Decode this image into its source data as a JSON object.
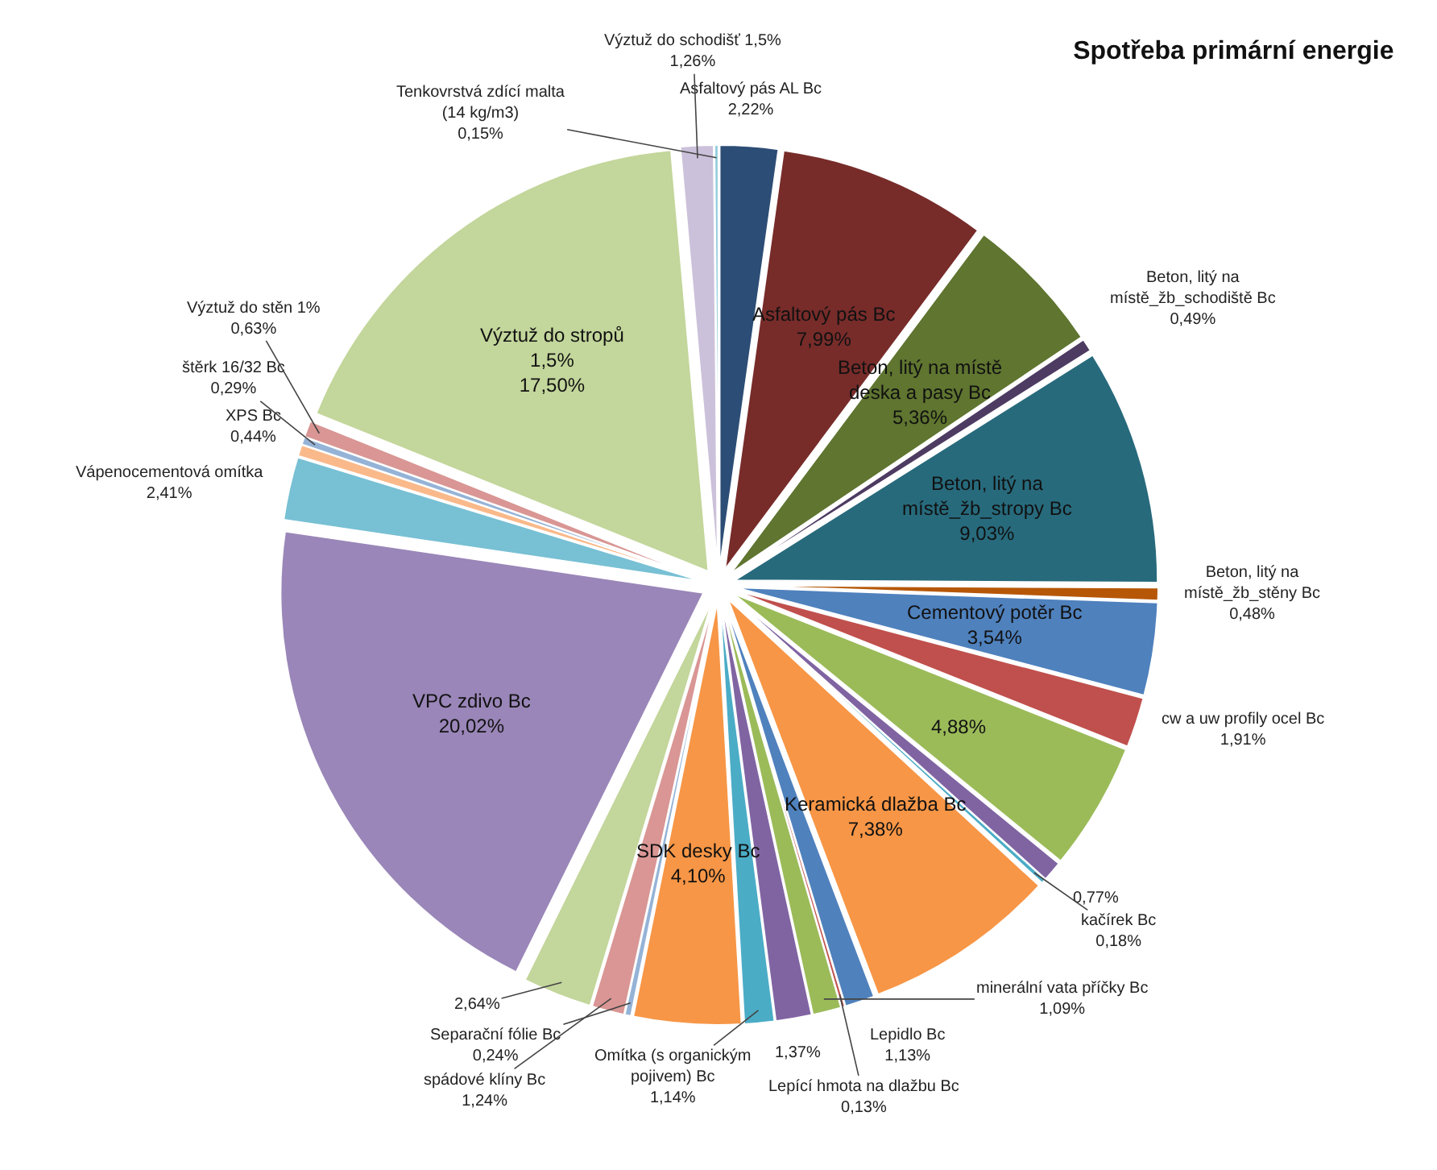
{
  "chart_data": {
    "type": "pie",
    "title": "Spotřeba primární energie",
    "categories": [
      "Asfaltový pás AL Bc",
      "Asfaltový pás Bc",
      "Beton, litý na místě deska a pasy Bc",
      "Beton, litý na místě_žb_schodiště Bc",
      "Beton, litý na místě_žb_stropy Bc",
      "Beton, litý na místě_žb_stěny Bc",
      "Cementový potěr Bc",
      "cw a uw profily ocel Bc",
      null,
      null,
      "kačírek Bc",
      "Keramická dlažba Bc",
      "Lepidlo Bc",
      "Lepící hmota na dlažbu Bc",
      "minerální vata příčky Bc",
      null,
      "Omítka (s organickým pojivem) Bc",
      "SDK desky Bc",
      "Separační fólie Bc",
      "spádové klíny Bc",
      null,
      "VPC zdivo Bc",
      "Vápenocementová omítka",
      "XPS Bc",
      "štěrk 16/32 Bc",
      "Výztuž do stěn 1%",
      "Výztuž do stropů 1,5%",
      "Výztuž do schodišť 1,5%",
      "Tenkovrstvá zdící malta (14 kg/m3)"
    ],
    "values": [
      2.22,
      7.99,
      5.36,
      0.49,
      9.03,
      0.48,
      3.54,
      1.91,
      4.88,
      0.77,
      0.18,
      7.38,
      1.13,
      0.13,
      1.09,
      1.37,
      1.14,
      4.1,
      0.24,
      1.24,
      2.64,
      20.02,
      2.41,
      0.44,
      0.29,
      0.63,
      17.5,
      1.26,
      0.15
    ],
    "value_labels": [
      "2,22%",
      "7,99%",
      "5,36%",
      "0,49%",
      "9,03%",
      "0,48%",
      "3,54%",
      "1,91%",
      "4,88%",
      "0,77%",
      "0,18%",
      "7,38%",
      "1,13%",
      "0,13%",
      "1,09%",
      "1,37%",
      "1,14%",
      "4,10%",
      "0,24%",
      "1,24%",
      "2,64%",
      "20,02%",
      "2,41%",
      "0,44%",
      "0,29%",
      "0,63%",
      "17,50%",
      "1,26%",
      "0,15%"
    ],
    "colors": [
      "#2c4d75",
      "#772c2a",
      "#5f7530",
      "#4d3b62",
      "#276a7c",
      "#b65708",
      "#4f81bd",
      "#c0504d",
      "#9bbb59",
      "#8064a2",
      "#4bacc6",
      "#f79646",
      "#4f81bd",
      "#c0504d",
      "#9bbb59",
      "#8064a2",
      "#4bacc6",
      "#f79646",
      "#95b3d7",
      "#d99694",
      "#c3d69b",
      "#9a86b8",
      "#78c0d4",
      "#fab98a",
      "#95b3d7",
      "#d99694",
      "#c3d69b",
      "#ccc1da",
      "#93cddd"
    ],
    "legend": false
  }
}
